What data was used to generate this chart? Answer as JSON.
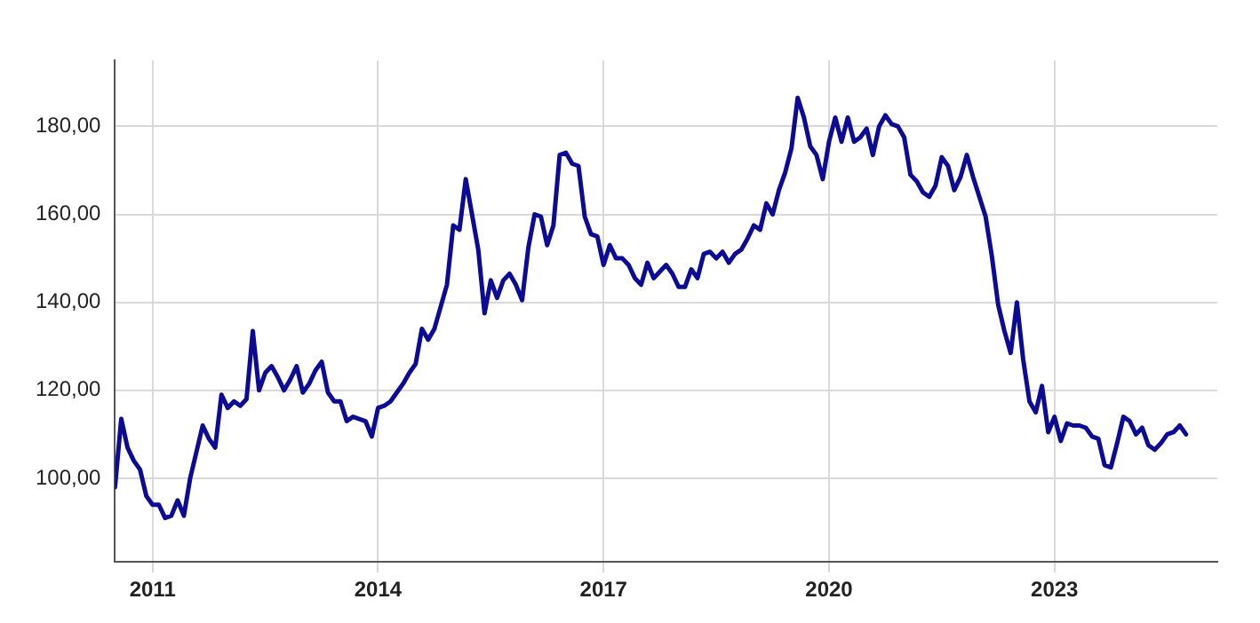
{
  "chart_data": {
    "type": "line",
    "x": [
      "2010-07",
      "2010-08",
      "2010-09",
      "2010-10",
      "2010-11",
      "2010-12",
      "2011-01",
      "2011-02",
      "2011-03",
      "2011-04",
      "2011-05",
      "2011-06",
      "2011-07",
      "2011-08",
      "2011-09",
      "2011-10",
      "2011-11",
      "2011-12",
      "2012-01",
      "2012-02",
      "2012-03",
      "2012-04",
      "2012-05",
      "2012-06",
      "2012-07",
      "2012-08",
      "2012-09",
      "2012-10",
      "2012-11",
      "2012-12",
      "2013-01",
      "2013-02",
      "2013-03",
      "2013-04",
      "2013-05",
      "2013-06",
      "2013-07",
      "2013-08",
      "2013-09",
      "2013-10",
      "2013-11",
      "2013-12",
      "2014-01",
      "2014-02",
      "2014-03",
      "2014-04",
      "2014-05",
      "2014-06",
      "2014-07",
      "2014-08",
      "2014-09",
      "2014-10",
      "2014-11",
      "2014-12",
      "2015-01",
      "2015-02",
      "2015-03",
      "2015-04",
      "2015-05",
      "2015-06",
      "2015-07",
      "2015-08",
      "2015-09",
      "2015-10",
      "2015-11",
      "2015-12",
      "2016-01",
      "2016-02",
      "2016-03",
      "2016-04",
      "2016-05",
      "2016-06",
      "2016-07",
      "2016-08",
      "2016-09",
      "2016-10",
      "2016-11",
      "2016-12",
      "2017-01",
      "2017-02",
      "2017-03",
      "2017-04",
      "2017-05",
      "2017-06",
      "2017-07",
      "2017-08",
      "2017-09",
      "2017-10",
      "2017-11",
      "2017-12",
      "2018-01",
      "2018-02",
      "2018-03",
      "2018-04",
      "2018-05",
      "2018-06",
      "2018-07",
      "2018-08",
      "2018-09",
      "2018-10",
      "2018-11",
      "2018-12",
      "2019-01",
      "2019-02",
      "2019-03",
      "2019-04",
      "2019-05",
      "2019-06",
      "2019-07",
      "2019-08",
      "2019-09",
      "2019-10",
      "2019-11",
      "2019-12",
      "2020-01",
      "2020-02",
      "2020-03",
      "2020-04",
      "2020-05",
      "2020-06",
      "2020-07",
      "2020-08",
      "2020-09",
      "2020-10",
      "2020-11",
      "2020-12",
      "2021-01",
      "2021-02",
      "2021-03",
      "2021-04",
      "2021-05",
      "2021-06",
      "2021-07",
      "2021-08",
      "2021-09",
      "2021-10",
      "2021-11",
      "2021-12",
      "2022-01",
      "2022-02",
      "2022-03",
      "2022-04",
      "2022-05",
      "2022-06",
      "2022-07",
      "2022-08",
      "2022-09",
      "2022-10",
      "2022-11",
      "2022-12",
      "2023-01",
      "2023-02",
      "2023-03",
      "2023-04",
      "2023-05",
      "2023-06",
      "2023-07",
      "2023-08",
      "2023-09",
      "2023-10",
      "2023-11",
      "2023-12",
      "2024-01",
      "2024-02",
      "2024-03",
      "2024-04",
      "2024-05",
      "2024-06",
      "2024-07",
      "2024-08",
      "2024-09",
      "2024-10"
    ],
    "series": [
      {
        "color": "#0b0b96",
        "values": [
          98,
          113.5,
          107,
          104,
          102,
          96,
          94,
          94,
          91,
          91.5,
          95,
          91.5,
          100,
          106,
          112,
          109,
          107,
          119,
          116,
          117.5,
          116.5,
          118,
          133.5,
          120,
          124,
          125.5,
          123,
          120,
          122.5,
          125.5,
          119.5,
          121.5,
          124.5,
          126.5,
          119.5,
          117.5,
          117.5,
          113,
          114,
          113.5,
          113,
          109.5,
          116,
          116.5,
          117.5,
          119.5,
          121.5,
          124,
          126,
          134,
          131.5,
          134,
          139,
          144,
          157.5,
          156.5,
          168,
          160,
          152,
          137.5,
          145,
          141,
          145,
          146.5,
          144,
          140.5,
          152.5,
          160,
          159.5,
          153,
          157.5,
          173.5,
          174,
          171.5,
          171,
          159.5,
          155.5,
          155,
          148.5,
          153,
          150,
          150,
          148.5,
          145.5,
          144,
          149,
          145.5,
          147,
          148.5,
          146.5,
          143.5,
          143.5,
          147.5,
          145.5,
          151,
          151.5,
          150,
          151.5,
          149,
          151,
          152,
          154.5,
          157.5,
          156.5,
          162.5,
          160,
          165.5,
          169.5,
          175,
          186.5,
          182,
          175.5,
          173.5,
          168,
          176.5,
          182,
          176.5,
          182,
          176.5,
          177.5,
          179.5,
          173.5,
          180,
          182.5,
          180.5,
          180,
          177.5,
          169,
          167.5,
          165,
          164,
          166.5,
          173,
          171,
          165.5,
          168.5,
          173.5,
          168.5,
          164,
          159.5,
          150.5,
          139.5,
          133.5,
          128.5,
          140,
          127,
          117.5,
          115,
          121,
          110.5,
          114,
          108.5,
          112.5,
          112,
          112,
          111.5,
          109.5,
          109,
          103,
          102.5,
          108,
          114,
          113,
          110,
          111.5,
          107.5,
          106.5,
          108,
          110,
          110.5,
          112,
          110
        ]
      }
    ],
    "xlim": [
      "2010-07",
      "2025-03"
    ],
    "xticks": [
      "2011",
      "2014",
      "2017",
      "2020",
      "2023"
    ],
    "ylim": [
      81,
      195
    ],
    "yticks": [
      {
        "value": 100,
        "label": "100,00"
      },
      {
        "value": 120,
        "label": "120,00"
      },
      {
        "value": 140,
        "label": "140,00"
      },
      {
        "value": 160,
        "label": "160,00"
      },
      {
        "value": 180,
        "label": "180,00"
      }
    ],
    "grid": true,
    "legend": false,
    "marker": "none",
    "line_style": "solid"
  }
}
